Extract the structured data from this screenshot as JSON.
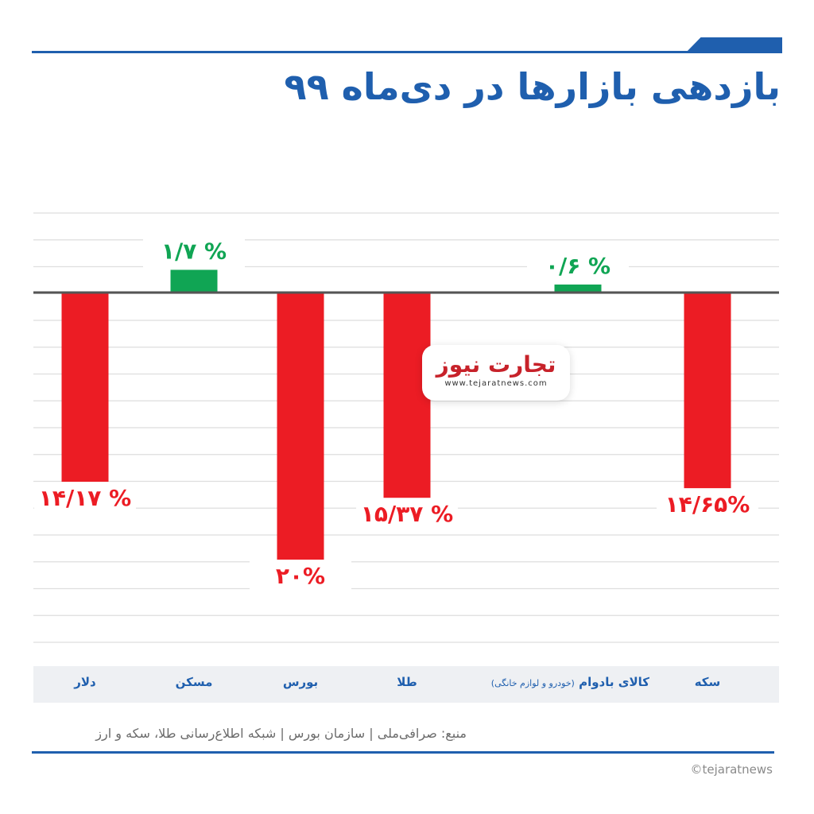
{
  "title": "بازدهی بازارها در دی‌ماه ۹۹",
  "source": "منبع: صرافی‌ملی | سازمان بورس | شبکه اطلاع‌رسانی طلا، سکه و ارز",
  "credit": "©tejaratnews",
  "watermark": {
    "name": "تجارت نیوز",
    "url": "www.tejaratnews.com"
  },
  "colors": {
    "accent": "#1f5fae",
    "positive": "#10a554",
    "negative": "#ec1c24",
    "grid": "#dedede",
    "zero_line": "#555555"
  },
  "chart_data": {
    "type": "bar",
    "categories": [
      "دلار",
      "مسکن",
      "بورس",
      "طلا",
      "کالای بادوام",
      "سکه"
    ],
    "category_notes": [
      "",
      "",
      "",
      "",
      "(خودرو و لوازم خانگی)",
      ""
    ],
    "values": [
      -14.17,
      1.7,
      -20,
      -15.37,
      0.6,
      -14.65
    ],
    "data_labels": [
      "۱۴/۱۷ %",
      "۱/۷ %",
      "۲۰%",
      "۱۵/۳۷ %",
      "۰/۶ %",
      "۱۴/۶۵%"
    ],
    "ylim": [
      -26,
      6
    ],
    "grid": true,
    "title": "بازدهی بازارها در دی‌ماه ۹۹",
    "xlabel": "",
    "ylabel": ""
  }
}
